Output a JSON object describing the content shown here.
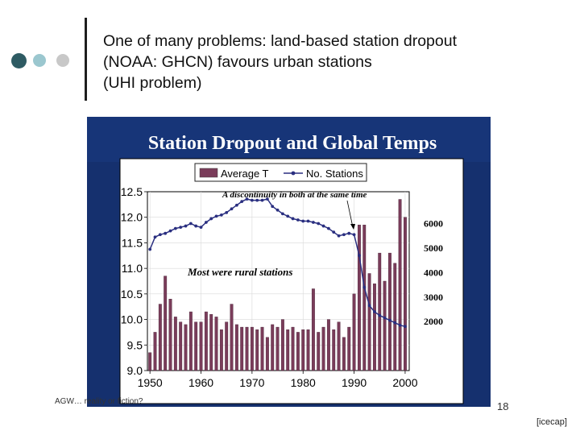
{
  "slide": {
    "title_lines": [
      "One of many problems: land-based station dropout",
      "(NOAA: GHCN) favours urban stations",
      "(UHI problem)"
    ],
    "footer_text": "AGW… reality or fiction?",
    "page_number": "18",
    "credit": "[icecap]",
    "colors": {
      "dot_dark": "#2e5b63",
      "dot_mid": "#9bc7cf",
      "dot_light": "#c8c8c8",
      "panel_bg": "#15306e",
      "bar": "#7a3c5a",
      "line": "#2a2f80"
    }
  },
  "chart_data": {
    "type": "bar",
    "title": "Station Dropout and Global Temps",
    "legend": [
      "Average T",
      "No. Stations"
    ],
    "annotations": [
      "A discontinuity in both at the same time",
      "Most were rural stations"
    ],
    "x_ticks": [
      "1950",
      "1960",
      "1970",
      "1980",
      "1990",
      "2000"
    ],
    "y_ticks": [
      "12.5",
      "12.0",
      "11.5",
      "11.0",
      "10.5",
      "10.0",
      "9.5",
      "9.0"
    ],
    "y2_ticks": [
      "6000",
      "5000",
      "4000",
      "3000",
      "2000"
    ],
    "ylim": [
      9.0,
      12.5
    ],
    "y2lim": [
      0,
      7300
    ],
    "xlim": [
      1949.5,
      2000.8
    ],
    "series": [
      {
        "name": "Average T",
        "x": [
          1950,
          1951,
          1952,
          1953,
          1954,
          1955,
          1956,
          1957,
          1958,
          1959,
          1960,
          1961,
          1962,
          1963,
          1964,
          1965,
          1966,
          1967,
          1968,
          1969,
          1970,
          1971,
          1972,
          1973,
          1974,
          1975,
          1976,
          1977,
          1978,
          1979,
          1980,
          1981,
          1982,
          1983,
          1984,
          1985,
          1986,
          1987,
          1988,
          1989,
          1990,
          1991,
          1992,
          1993,
          1994,
          1995,
          1996,
          1997,
          1998,
          1999,
          2000
        ],
        "values": [
          9.35,
          9.75,
          10.3,
          10.85,
          10.4,
          10.05,
          9.95,
          9.9,
          10.15,
          9.95,
          9.95,
          10.15,
          10.1,
          10.05,
          9.8,
          9.95,
          10.3,
          9.9,
          9.85,
          9.85,
          9.85,
          9.8,
          9.85,
          9.65,
          9.9,
          9.85,
          10.0,
          9.8,
          9.85,
          9.75,
          9.8,
          9.8,
          10.6,
          9.75,
          9.85,
          10.0,
          9.8,
          9.95,
          9.65,
          9.85,
          10.5,
          11.85,
          11.85,
          10.9,
          10.7,
          11.3,
          10.75,
          11.3,
          11.1,
          12.35,
          12.0
        ]
      },
      {
        "name": "No. Stations",
        "x": [
          1950,
          1951,
          1952,
          1953,
          1954,
          1955,
          1956,
          1957,
          1958,
          1959,
          1960,
          1961,
          1962,
          1963,
          1964,
          1965,
          1966,
          1967,
          1968,
          1969,
          1970,
          1971,
          1972,
          1973,
          1974,
          1975,
          1976,
          1977,
          1978,
          1979,
          1980,
          1981,
          1982,
          1983,
          1984,
          1985,
          1986,
          1987,
          1988,
          1989,
          1990,
          1991,
          1992,
          1993,
          1994,
          1995,
          1996,
          1997,
          1998,
          1999,
          2000
        ],
        "values": [
          4950,
          5450,
          5550,
          5600,
          5700,
          5800,
          5850,
          5900,
          6000,
          5900,
          5850,
          6050,
          6200,
          6300,
          6350,
          6450,
          6600,
          6750,
          6900,
          7000,
          6950,
          6950,
          6950,
          7000,
          6700,
          6550,
          6400,
          6300,
          6200,
          6150,
          6100,
          6100,
          6050,
          6000,
          5900,
          5800,
          5650,
          5500,
          5550,
          5600,
          5550,
          4700,
          3400,
          2650,
          2400,
          2250,
          2150,
          2050,
          1950,
          1850,
          1800
        ]
      }
    ]
  }
}
